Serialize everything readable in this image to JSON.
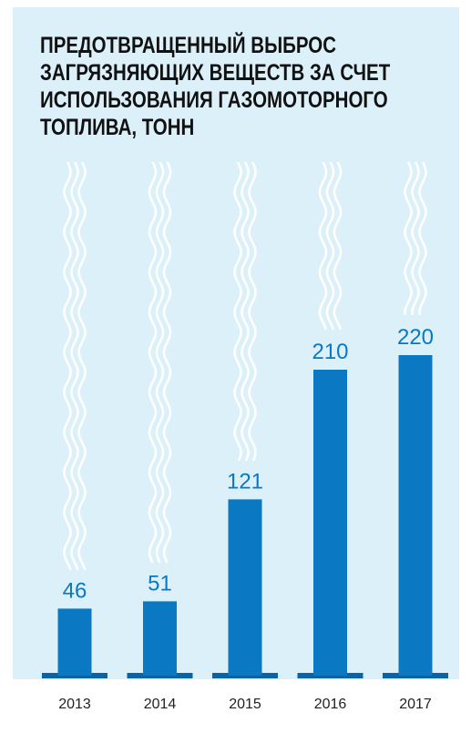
{
  "chart_data": {
    "type": "bar",
    "title_lines": [
      "ПРЕДОТВРАЩЕННЫЙ ВЫБРОС",
      "ЗАГРЯЗНЯЮЩИХ ВЕЩЕСТВ ЗА СЧЕТ",
      "ИСПОЛЬЗОВАНИЯ ГАЗОМОТОРНОГО",
      "ТОПЛИВА, ТОНН"
    ],
    "categories": [
      "2013",
      "2014",
      "2015",
      "2016",
      "2017"
    ],
    "values": [
      46,
      51,
      121,
      210,
      220
    ],
    "color": "#0a78c2"
  }
}
